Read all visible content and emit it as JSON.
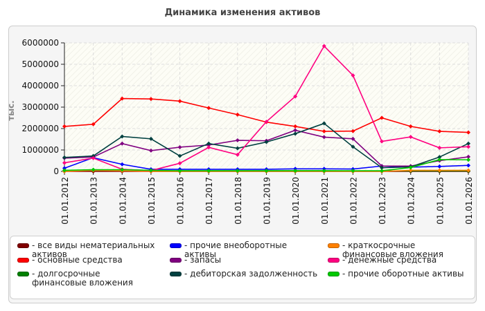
{
  "chart_data": {
    "type": "line",
    "title": "Динамика изменения активов",
    "ylabel": "тыс.",
    "xlabel": "",
    "ylim": [
      0,
      6000000
    ],
    "yticks": [
      0,
      1000000,
      2000000,
      3000000,
      4000000,
      5000000,
      6000000
    ],
    "ytick_labels": [
      "0",
      "1000000",
      "2000000",
      "3000000",
      "4000000",
      "5000000",
      "6000000"
    ],
    "grid": true,
    "legend_position": "bottom",
    "categories": [
      "01.01.2012",
      "01.01.2013",
      "01.01.2014",
      "01.01.2015",
      "01.01.2016",
      "01.01.2017",
      "01.01.2018",
      "01.01.2019",
      "01.01.2020",
      "01.01.2021",
      "01.01.2022",
      "01.01.2023",
      "01.01.2024",
      "01.01.2025",
      "01.01.2026"
    ],
    "series": [
      {
        "name": "- все виды нематериальных активов",
        "color": "#800000",
        "values": [
          0,
          0,
          0,
          0,
          0,
          0,
          0,
          0,
          0,
          0,
          0,
          0,
          0,
          0,
          0
        ]
      },
      {
        "name": "- основные средства",
        "color": "#ff0000",
        "values": [
          2100000,
          2200000,
          3400000,
          3380000,
          3280000,
          2960000,
          2650000,
          2300000,
          2100000,
          1870000,
          1880000,
          2500000,
          2100000,
          1870000,
          1820000
        ]
      },
      {
        "name": "- долгосрочные финансовые вложения",
        "color": "#008000",
        "values": [
          50000,
          50000,
          50000,
          30000,
          30000,
          30000,
          30000,
          30000,
          30000,
          30000,
          20000,
          20000,
          20000,
          20000,
          20000
        ]
      },
      {
        "name": "- прочие внеоборотные активы",
        "color": "#0000ff",
        "values": [
          150000,
          640000,
          330000,
          100000,
          100000,
          100000,
          100000,
          100000,
          120000,
          120000,
          110000,
          250000,
          200000,
          230000,
          280000
        ]
      },
      {
        "name": "- запасы",
        "color": "#800080",
        "values": [
          620000,
          670000,
          1300000,
          970000,
          1130000,
          1230000,
          1450000,
          1430000,
          1920000,
          1600000,
          1520000,
          250000,
          250000,
          500000,
          680000
        ]
      },
      {
        "name": "- дебиторская задолженность",
        "color": "#004040",
        "values": [
          650000,
          720000,
          1630000,
          1520000,
          720000,
          1300000,
          1080000,
          1370000,
          1760000,
          2240000,
          1150000,
          170000,
          210000,
          670000,
          1300000
        ]
      },
      {
        "name": "- краткосрочные финансовые вложения",
        "color": "#ff8000",
        "values": [
          0,
          50000,
          30000,
          0,
          0,
          0,
          0,
          0,
          0,
          0,
          0,
          0,
          50000,
          50000,
          50000
        ]
      },
      {
        "name": "- денежные средства",
        "color": "#ff0080",
        "values": [
          400000,
          620000,
          100000,
          40000,
          380000,
          1120000,
          780000,
          2320000,
          3500000,
          5850000,
          4480000,
          1400000,
          1610000,
          1100000,
          1150000
        ]
      },
      {
        "name": "- прочие оборотные активы",
        "color": "#00c800",
        "values": [
          50000,
          80000,
          80000,
          50000,
          30000,
          30000,
          30000,
          30000,
          30000,
          30000,
          30000,
          30000,
          180000,
          550000,
          540000
        ]
      }
    ]
  }
}
